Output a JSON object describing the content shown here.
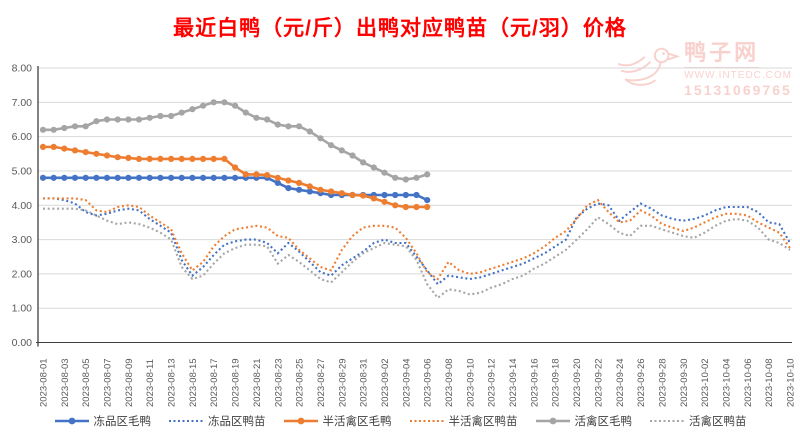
{
  "title": "最近白鸭（元/斤）出鸭对应鸭苗（元/羽）价格",
  "title_color": "#FF0000",
  "watermark": {
    "icon": "duck-logo-icon",
    "site_name": "鸭子网",
    "url": "WWW.INTEDC.COM",
    "phone": "15131069765",
    "color": "#F2A59D"
  },
  "chart_data": {
    "type": "line",
    "title": "最近白鸭（元/斤）出鸭对应鸭苗（元/羽）价格",
    "xlabel": "",
    "ylabel": "",
    "ylim": [
      0,
      8
    ],
    "y_tick_labels": [
      "0.00",
      "1.00",
      "2.00",
      "3.00",
      "4.00",
      "5.00",
      "6.00",
      "7.00",
      "8.00"
    ],
    "x_tick_step": 2,
    "grid": true,
    "legend_position": "bottom",
    "axis_color": "#404040",
    "grid_color": "#D9D9D9",
    "tick_label_color": "#595959",
    "x": [
      "2023-08-01",
      "2023-08-02",
      "2023-08-03",
      "2023-08-04",
      "2023-08-05",
      "2023-08-06",
      "2023-08-07",
      "2023-08-08",
      "2023-08-09",
      "2023-08-10",
      "2023-08-11",
      "2023-08-12",
      "2023-08-13",
      "2023-08-14",
      "2023-08-15",
      "2023-08-16",
      "2023-08-17",
      "2023-08-18",
      "2023-08-19",
      "2023-08-20",
      "2023-08-21",
      "2023-08-22",
      "2023-08-23",
      "2023-08-24",
      "2023-08-25",
      "2023-08-26",
      "2023-08-27",
      "2023-08-28",
      "2023-08-29",
      "2023-08-30",
      "2023-08-31",
      "2023-09-01",
      "2023-09-02",
      "2023-09-03",
      "2023-09-04",
      "2023-09-05",
      "2023-09-06",
      "2023-09-07",
      "2023-09-08",
      "2023-09-09",
      "2023-09-10",
      "2023-09-11",
      "2023-09-12",
      "2023-09-13",
      "2023-09-14",
      "2023-09-15",
      "2023-09-16",
      "2023-09-17",
      "2023-09-18",
      "2023-09-19",
      "2023-09-20",
      "2023-09-21",
      "2023-09-22",
      "2023-09-23",
      "2023-09-24",
      "2023-09-25",
      "2023-09-26",
      "2023-09-27",
      "2023-09-28",
      "2023-09-29",
      "2023-09-30",
      "2023-10-01",
      "2023-10-02",
      "2023-10-03",
      "2023-10-04",
      "2023-10-05",
      "2023-10-06",
      "2023-10-07",
      "2023-10-08",
      "2023-10-09",
      "2023-10-10"
    ],
    "series": [
      {
        "key": "frozen-area-duck",
        "name": "冻品区毛鸭",
        "color": "#4472C4",
        "style": "solid",
        "marker": "circle",
        "values": [
          4.8,
          4.8,
          4.8,
          4.8,
          4.8,
          4.8,
          4.8,
          4.8,
          4.8,
          4.8,
          4.8,
          4.8,
          4.8,
          4.8,
          4.8,
          4.8,
          4.8,
          4.8,
          4.8,
          4.8,
          4.8,
          4.8,
          4.65,
          4.5,
          4.45,
          4.4,
          4.35,
          4.3,
          4.3,
          4.3,
          4.3,
          4.3,
          4.3,
          4.3,
          4.3,
          4.3,
          4.15
        ]
      },
      {
        "key": "frozen-area-duckling",
        "name": "冻品区鸭苗",
        "color": "#4472C4",
        "style": "dotted",
        "marker": "none",
        "values": [
          4.2,
          4.2,
          4.15,
          4.05,
          3.8,
          3.7,
          3.75,
          3.85,
          3.9,
          3.85,
          3.6,
          3.4,
          3.2,
          2.4,
          1.95,
          2.2,
          2.55,
          2.85,
          2.95,
          3.0,
          3.0,
          2.9,
          2.6,
          2.9,
          2.65,
          2.35,
          2.05,
          1.95,
          2.25,
          2.45,
          2.65,
          2.9,
          3.0,
          2.9,
          2.9,
          2.5,
          2.1,
          1.7,
          1.95,
          1.9,
          1.85,
          1.9,
          2.0,
          2.1,
          2.2,
          2.3,
          2.45,
          2.6,
          2.8,
          3.0,
          3.65,
          3.9,
          4.05,
          4.0,
          3.55,
          3.8,
          4.05,
          3.9,
          3.7,
          3.6,
          3.55,
          3.6,
          3.7,
          3.85,
          3.95,
          3.95,
          3.95,
          3.8,
          3.5,
          3.45,
          2.9
        ]
      },
      {
        "key": "semi-live-area-duck",
        "name": "半活禽区毛鸭",
        "color": "#ED7D31",
        "style": "solid",
        "marker": "circle",
        "values": [
          5.7,
          5.7,
          5.65,
          5.6,
          5.55,
          5.5,
          5.45,
          5.4,
          5.38,
          5.35,
          5.35,
          5.35,
          5.35,
          5.35,
          5.35,
          5.35,
          5.35,
          5.35,
          5.1,
          4.9,
          4.9,
          4.88,
          4.8,
          4.72,
          4.65,
          4.55,
          4.45,
          4.4,
          4.35,
          4.3,
          4.28,
          4.2,
          4.1,
          4.0,
          3.95,
          3.95,
          3.95
        ]
      },
      {
        "key": "semi-live-area-duckling",
        "name": "半活禽区鸭苗",
        "color": "#ED7D31",
        "style": "dotted",
        "marker": "none",
        "values": [
          4.2,
          4.2,
          4.2,
          4.2,
          4.15,
          3.85,
          3.8,
          3.95,
          4.0,
          3.95,
          3.7,
          3.5,
          3.3,
          2.6,
          2.1,
          2.35,
          2.8,
          3.1,
          3.3,
          3.35,
          3.4,
          3.35,
          3.1,
          3.05,
          2.7,
          2.45,
          2.2,
          2.1,
          2.7,
          3.1,
          3.35,
          3.4,
          3.4,
          3.35,
          3.05,
          2.6,
          2.05,
          1.85,
          2.35,
          2.1,
          2.0,
          2.05,
          2.15,
          2.25,
          2.35,
          2.45,
          2.6,
          2.8,
          3.05,
          3.25,
          3.6,
          4.0,
          4.15,
          3.8,
          3.5,
          3.55,
          3.85,
          3.7,
          3.45,
          3.35,
          3.25,
          3.35,
          3.5,
          3.65,
          3.75,
          3.75,
          3.7,
          3.5,
          3.35,
          3.2,
          2.75
        ]
      },
      {
        "key": "live-area-duck",
        "name": "活禽区毛鸭",
        "color": "#A5A5A5",
        "style": "solid",
        "marker": "circle",
        "values": [
          6.2,
          6.2,
          6.25,
          6.3,
          6.3,
          6.45,
          6.5,
          6.5,
          6.5,
          6.5,
          6.55,
          6.6,
          6.6,
          6.7,
          6.8,
          6.9,
          7.0,
          7.0,
          6.9,
          6.7,
          6.55,
          6.5,
          6.35,
          6.3,
          6.3,
          6.15,
          5.95,
          5.75,
          5.6,
          5.45,
          5.25,
          5.1,
          4.95,
          4.8,
          4.75,
          4.8,
          4.9
        ]
      },
      {
        "key": "live-area-duckling",
        "name": "活禽区鸭苗",
        "color": "#A5A5A5",
        "style": "dotted",
        "marker": "none",
        "values": [
          3.9,
          3.9,
          3.9,
          3.9,
          3.85,
          3.7,
          3.55,
          3.45,
          3.5,
          3.45,
          3.35,
          3.2,
          3.0,
          2.2,
          1.85,
          1.95,
          2.3,
          2.6,
          2.75,
          2.85,
          2.85,
          2.8,
          2.3,
          2.55,
          2.35,
          2.1,
          1.85,
          1.75,
          2.05,
          2.35,
          2.6,
          2.75,
          2.9,
          2.85,
          2.8,
          2.4,
          1.7,
          1.3,
          1.55,
          1.5,
          1.4,
          1.45,
          1.6,
          1.7,
          1.85,
          1.95,
          2.15,
          2.3,
          2.5,
          2.7,
          3.0,
          3.3,
          3.65,
          3.45,
          3.2,
          3.1,
          3.4,
          3.4,
          3.3,
          3.2,
          3.1,
          3.05,
          3.2,
          3.4,
          3.55,
          3.6,
          3.55,
          3.35,
          3.0,
          2.9,
          2.7
        ]
      }
    ]
  }
}
